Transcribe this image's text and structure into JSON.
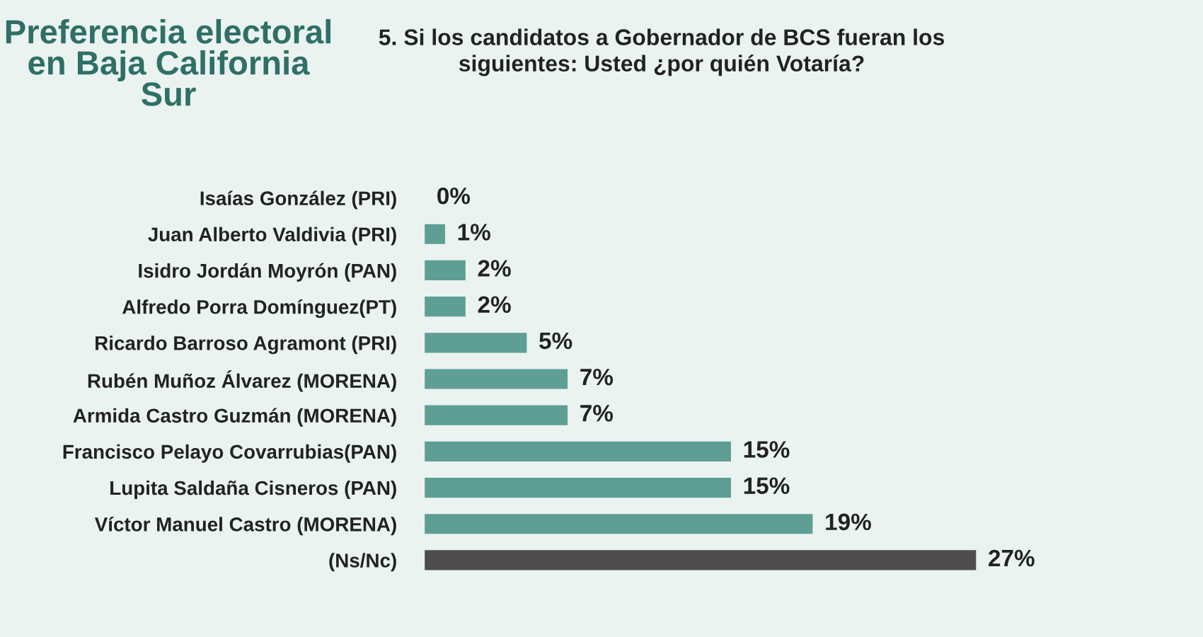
{
  "chart_data": {
    "type": "bar",
    "orientation": "horizontal",
    "title": "Preferencia electoral en Baja California Sur",
    "subtitle": "5. Si los candidatos a Gobernador de BCS fueran los siguientes: Usted ¿por quién Votaría?",
    "categories": [
      "Isaías González (PRI)",
      "Juan Alberto Valdivia (PRI)",
      "Isidro Jordán Moyrón (PAN)",
      "Alfredo Porra Domínguez(PT)",
      "Ricardo Barroso Agramont (PRI)",
      "Rubén Muñoz Álvarez (MORENA)",
      "Armida Castro Guzmán (MORENA)",
      "Francisco Pelayo Covarrubias(PAN)",
      "Lupita Saldaña Cisneros (PAN)",
      "Víctor Manuel Castro (MORENA)",
      "(Ns/Nc)"
    ],
    "values": [
      0,
      1,
      2,
      2,
      5,
      7,
      7,
      15,
      15,
      19,
      27
    ],
    "value_labels": [
      "0%",
      "1%",
      "2%",
      "2%",
      "5%",
      "7%",
      "7%",
      "15%",
      "15%",
      "19%",
      "27%"
    ],
    "colors": [
      "#5e9e95",
      "#5e9e95",
      "#5e9e95",
      "#5e9e95",
      "#5e9e95",
      "#5e9e95",
      "#5e9e95",
      "#5e9e95",
      "#5e9e95",
      "#5e9e95",
      "#4d4d4d"
    ],
    "grid": false,
    "legend": false
  }
}
